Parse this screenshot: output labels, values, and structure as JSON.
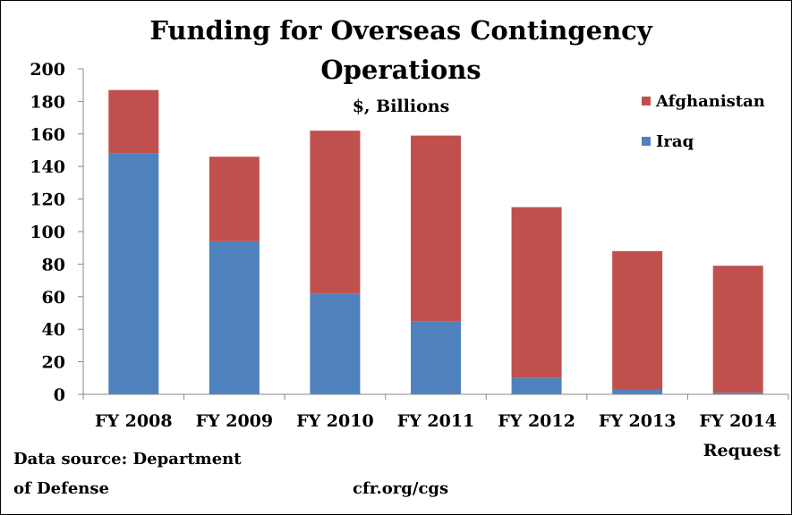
{
  "chart_data": {
    "type": "bar",
    "stacked": true,
    "title": "Funding for Overseas Contingency Operations",
    "subtitle": "$, Billions",
    "categories": [
      "FY 2008",
      "FY 2009",
      "FY 2010",
      "FY 2011",
      "FY 2012",
      "FY 2013",
      "FY 2014 Request"
    ],
    "series": [
      {
        "name": "Iraq",
        "color": "#4f81bd",
        "values": [
          148,
          94,
          62,
          45,
          10,
          3,
          1
        ]
      },
      {
        "name": "Afghanistan",
        "color": "#c0504d",
        "values": [
          39,
          52,
          100,
          114,
          105,
          85,
          78
        ]
      }
    ],
    "ylim": [
      0,
      200
    ],
    "yticks": [
      0,
      20,
      40,
      60,
      80,
      100,
      120,
      140,
      160,
      180,
      200
    ],
    "grid": false,
    "legend": "top-right, Afghanistan above Iraq"
  },
  "footer": {
    "source_line1": "Data source: Department",
    "source_line2": "of Defense",
    "site": "cfr.org/cgs"
  }
}
